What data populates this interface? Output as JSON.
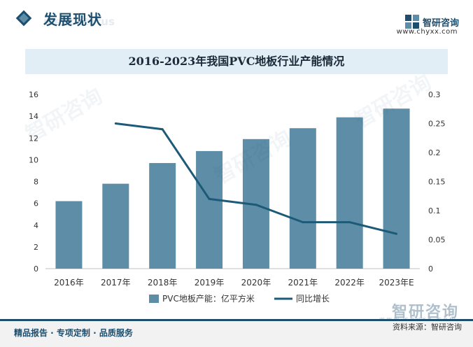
{
  "header": {
    "section_title": "发展现状",
    "section_subtitle": "ment status",
    "brand_name": "智研咨询",
    "brand_url": "www.chyxx.com"
  },
  "chart_title": "2016-2023年我国PVC地板行业产能情况",
  "chart_data": {
    "type": "bar",
    "title": "2016-2023年我国PVC地板行业产能情况",
    "categories": [
      "2016年",
      "2017年",
      "2018年",
      "2019年",
      "2020年",
      "2021年",
      "2022年",
      "2023年E"
    ],
    "series": [
      {
        "name": "PVC地板产能：亿平方米",
        "type": "bar",
        "axis": "left",
        "color": "#5e8ea7",
        "values": [
          6.2,
          7.8,
          9.7,
          10.8,
          11.9,
          12.9,
          13.9,
          14.7
        ]
      },
      {
        "name": "同比增长",
        "type": "line",
        "axis": "right",
        "color": "#1d5a78",
        "values": [
          null,
          0.25,
          0.24,
          0.12,
          0.11,
          0.08,
          0.08,
          0.06
        ]
      }
    ],
    "ylim_left": [
      0,
      16
    ],
    "yticks_left": [
      "0",
      "2",
      "4",
      "6",
      "8",
      "10",
      "12",
      "14",
      "16"
    ],
    "ylim_right": [
      0,
      0.3
    ],
    "yticks_right": [
      "0",
      "0.05",
      "0.1",
      "0.15",
      "0.2",
      "0.25",
      "0.3"
    ],
    "grid": false,
    "legend_position": "bottom"
  },
  "footer": {
    "left_text": "精品报告 · 专项定制 · 品质服务",
    "source_text": "资料来源：智研咨询",
    "brand_name": "智研咨询",
    "brand_url": "www.chyxx.com"
  }
}
